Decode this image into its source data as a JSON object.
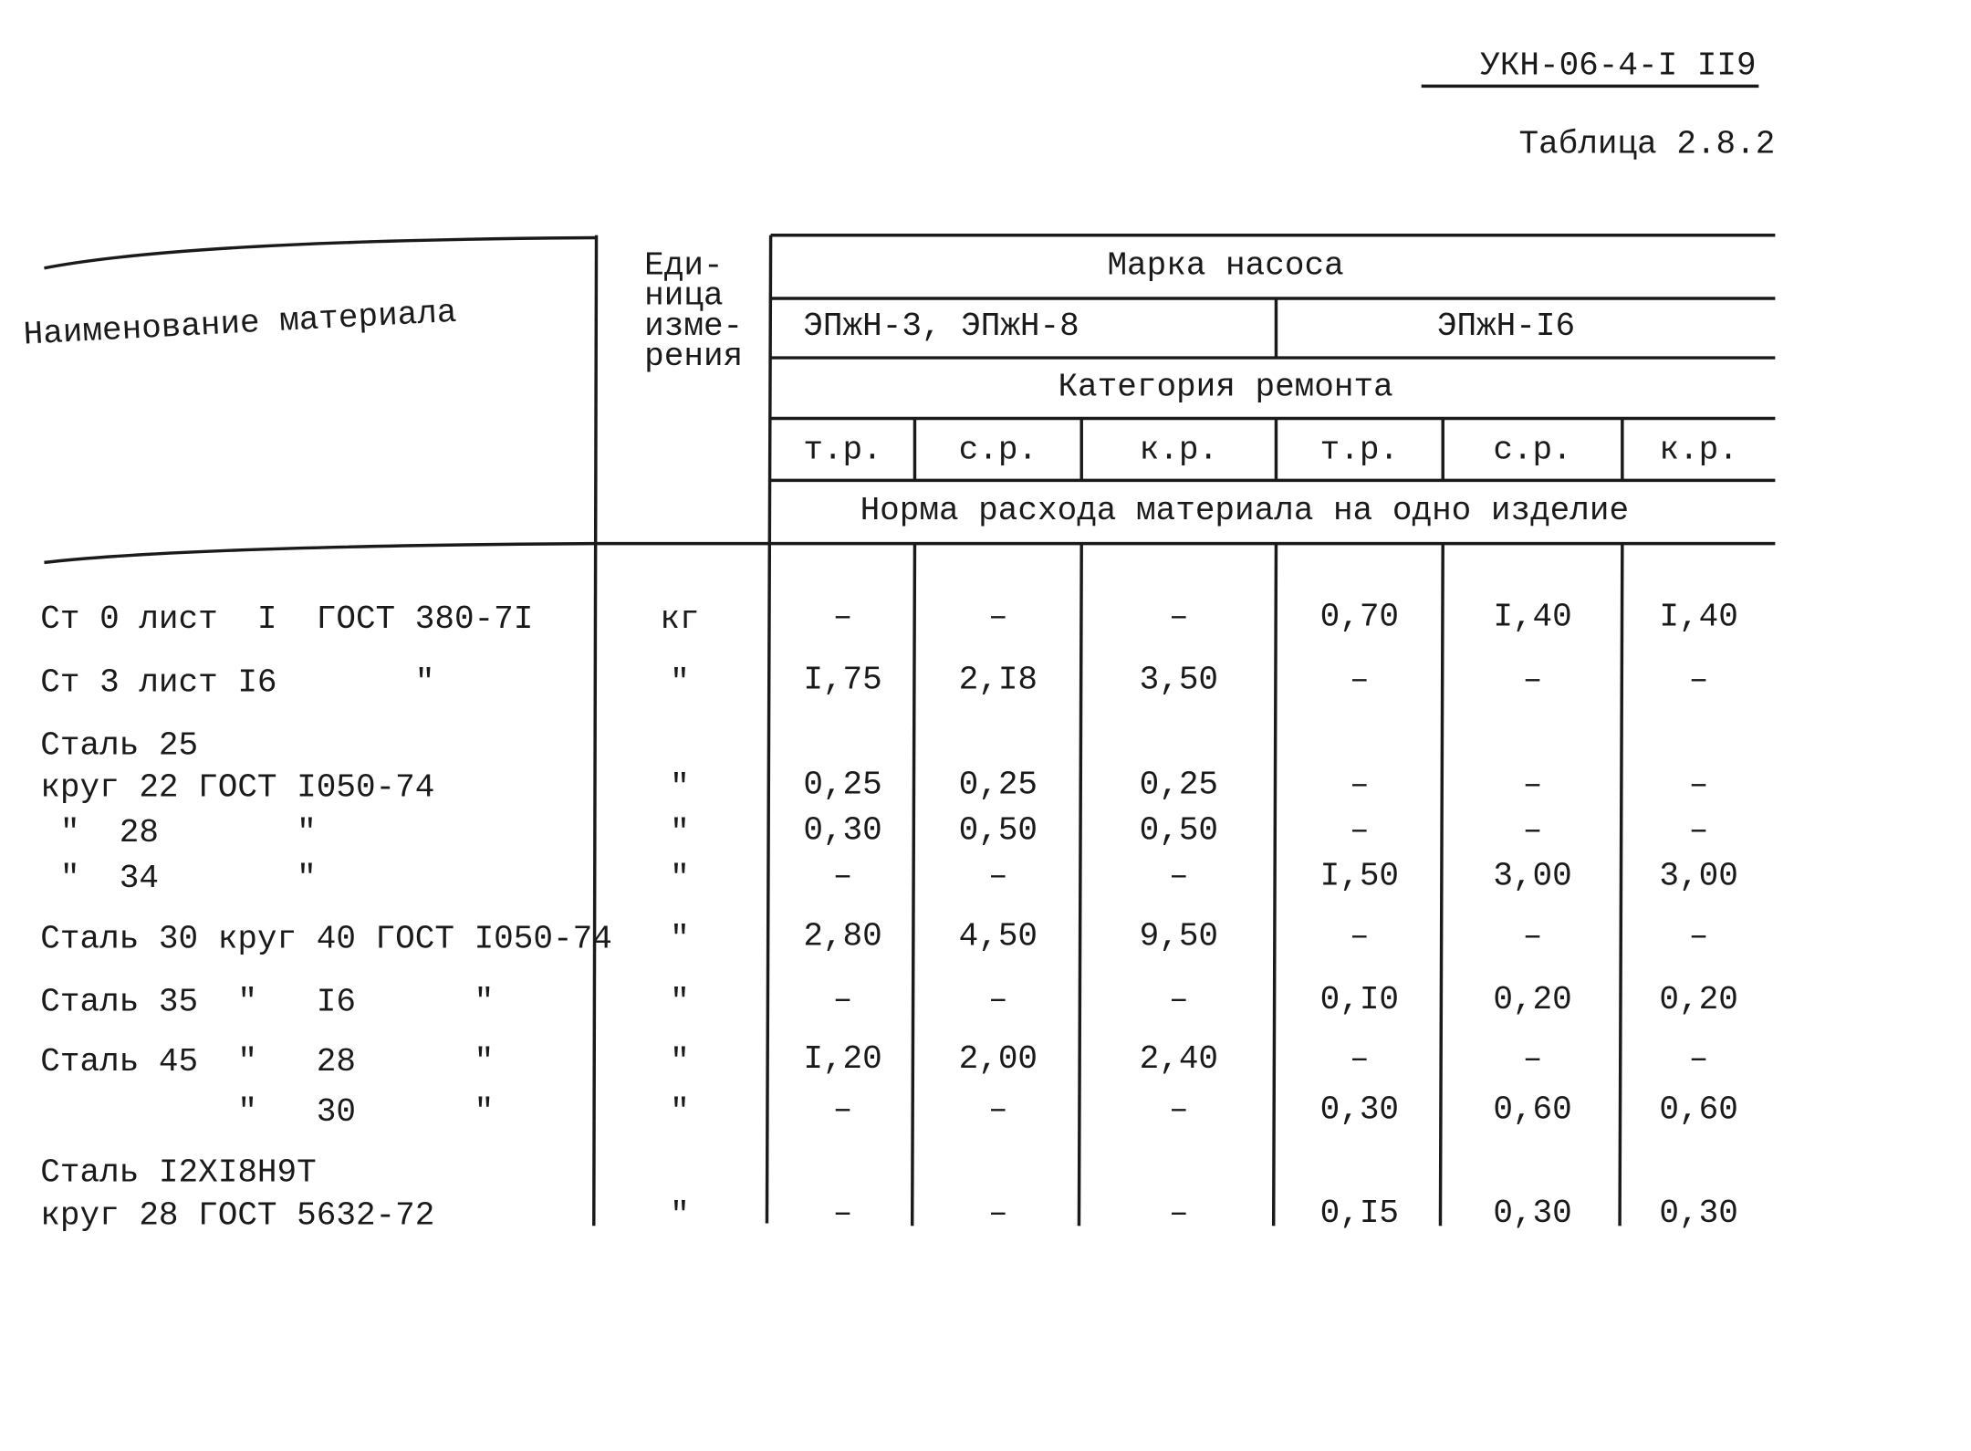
{
  "header": {
    "code": "УКН-06-4-I II9",
    "table_label": "Таблица 2.8.2"
  },
  "table": {
    "col_name": "Наименование материала",
    "col_unit": [
      "Еди-",
      "ница",
      "изме-",
      "рения"
    ],
    "group_title": "Марка насоса",
    "pumps": [
      "ЭПжН-3, ЭПжН-8",
      "ЭПжН-I6"
    ],
    "repair_title": "Категория ремонта",
    "repairs": [
      "т.р.",
      "с.р.",
      "к.р.",
      "т.р.",
      "с.р.",
      "к.р."
    ],
    "norm_title": "Норма расхода материала на одно изделие",
    "rows": [
      {
        "name": "Ст 0 лист  I  ГОСТ 380-7I",
        "unit": "кг",
        "values": [
          "–",
          "–",
          "–",
          "0,70",
          "I,40",
          "I,40"
        ]
      },
      {
        "name": "Ст 3 лист I6       \"",
        "unit": "\"",
        "values": [
          "I,75",
          "2,I8",
          "3,50",
          "–",
          "–",
          "–"
        ]
      },
      {
        "name": "Сталь 25"
      },
      {
        "name": "круг 22 ГОСТ I050-74",
        "unit": "\"",
        "values": [
          "0,25",
          "0,25",
          "0,25",
          "–",
          "–",
          "–"
        ]
      },
      {
        "name": " \"  28       \"",
        "unit": "\"",
        "values": [
          "0,30",
          "0,50",
          "0,50",
          "–",
          "–",
          "–"
        ]
      },
      {
        "name": " \"  34       \"",
        "unit": "\"",
        "values": [
          "–",
          "–",
          "–",
          "I,50",
          "3,00",
          "3,00"
        ]
      },
      {
        "name": "Сталь 30 круг 40 ГОСТ I050-74",
        "unit": "\"",
        "values": [
          "2,80",
          "4,50",
          "9,50",
          "–",
          "–",
          "–"
        ]
      },
      {
        "name": "Сталь 35  \"   I6      \"",
        "unit": "\"",
        "values": [
          "–",
          "–",
          "–",
          "0,I0",
          "0,20",
          "0,20"
        ]
      },
      {
        "name": "Сталь 45  \"   28      \"",
        "unit": "\"",
        "values": [
          "I,20",
          "2,00",
          "2,40",
          "–",
          "–",
          "–"
        ]
      },
      {
        "name": "          \"   30      \"",
        "unit": "\"",
        "values": [
          "–",
          "–",
          "–",
          "0,30",
          "0,60",
          "0,60"
        ]
      },
      {
        "name": "Сталь I2XI8H9T"
      },
      {
        "name": "круг 28 ГОСТ 5632-72",
        "unit": "\"",
        "values": [
          "–",
          "–",
          "–",
          "0,I5",
          "0,30",
          "0,30"
        ]
      }
    ]
  }
}
